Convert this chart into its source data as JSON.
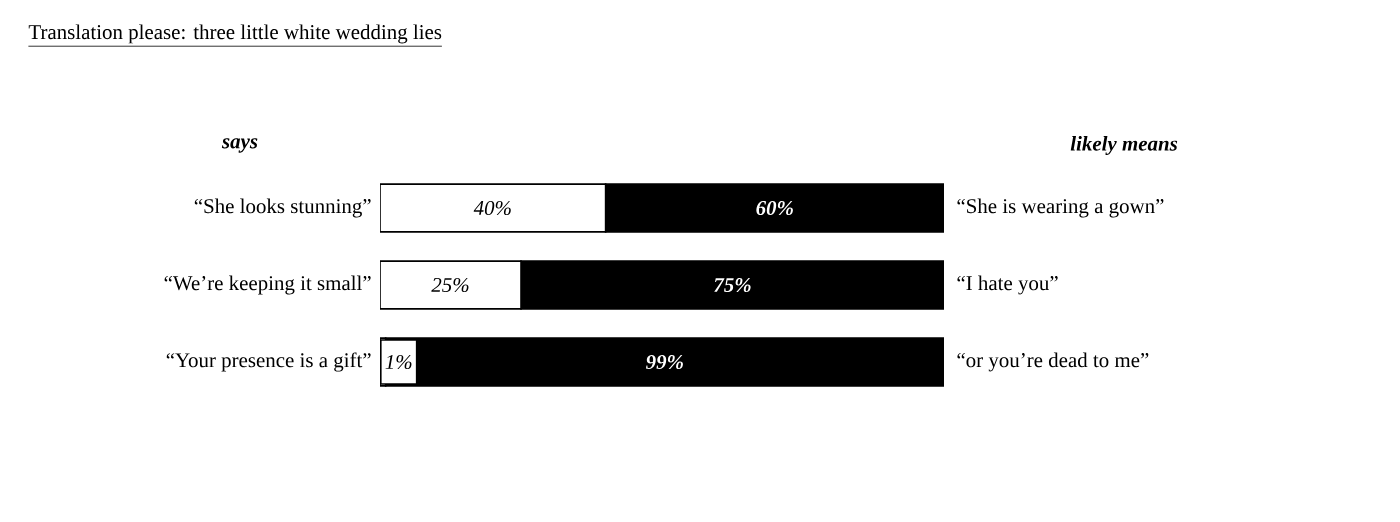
{
  "chart_data": {
    "type": "bar",
    "orientation": "horizontal",
    "stacked": true,
    "title": "Translation please: three little white wedding lies",
    "categories": [
      "“She looks stunning”",
      "“We’re keeping it small”",
      "“Your presence is a gift”"
    ],
    "series": [
      {
        "color": "#ffffff",
        "values": [
          40,
          25,
          1
        ],
        "value_labels": [
          "40%",
          "25%",
          "1%"
        ]
      },
      {
        "color": "#000000",
        "values": [
          60,
          75,
          99
        ],
        "value_labels": [
          "60%",
          "75%",
          "99%"
        ]
      }
    ],
    "xlim": [
      0,
      100
    ],
    "tick_labels": "y",
    "annotations": [
      "says",
      "likely means",
      "“She is wearing a gown”",
      "“I hate you”",
      "“or you’re dead to me”"
    ]
  }
}
